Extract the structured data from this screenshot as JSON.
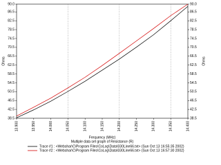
{
  "chart_data": {
    "type": "line",
    "title": "Multiple data set graph of Resistance (R)",
    "x_label": "Frequency (MHz)",
    "y_label": "Ohms",
    "x": [
      13.9,
      13.95,
      14.0,
      14.05,
      14.1,
      14.15,
      14.2,
      14.25,
      14.3,
      14.35,
      14.4
    ],
    "xlim": [
      13.9,
      14.4
    ],
    "xticks": [
      {
        "value": 13.9,
        "label": "13.900"
      },
      {
        "value": 13.95,
        "label": "13.950"
      },
      {
        "value": 14.0,
        "label": "14.000"
      },
      {
        "value": 14.05,
        "label": "14.050"
      },
      {
        "value": 14.1,
        "label": "14.100"
      },
      {
        "value": 14.15,
        "label": "14.150"
      },
      {
        "value": 14.2,
        "label": "14.200"
      },
      {
        "value": 14.25,
        "label": "14.250"
      },
      {
        "value": 14.3,
        "label": "14.300"
      },
      {
        "value": 14.35,
        "label": "14.350"
      },
      {
        "value": 14.4,
        "label": "14.400"
      }
    ],
    "ylim": [
      38.5,
      90
    ],
    "yticks": [
      38.5,
      42.5,
      46.5,
      50.5,
      54.5,
      58.5,
      62.5,
      66.5,
      70.5,
      74.5,
      78.5,
      82.5,
      86.5,
      {
        "value": 90,
        "label": "90.0"
      }
    ],
    "series": [
      {
        "name": "Trace #1 : <Webshar\\C\\Program Files\\CoLog\\Data\\030Line66.txt> (Sun Oct 13 16:55:35 2002)",
        "color": "#000000",
        "values": [
          38.7,
          42.3,
          46.2,
          50.6,
          55.2,
          60.2,
          65.2,
          70.6,
          76.2,
          82.5,
          89.0
        ]
      },
      {
        "name": "Trace #2 : <Webshar\\C\\Program Files\\CoLog\\Data\\030Line66.txt> (Sun Oct 13 16:57:30 2002)",
        "color": "#d40000",
        "values": [
          39.5,
          43.5,
          47.6,
          52.2,
          57.0,
          62.3,
          67.8,
          73.4,
          79.0,
          84.8,
          90.0
        ]
      }
    ]
  }
}
